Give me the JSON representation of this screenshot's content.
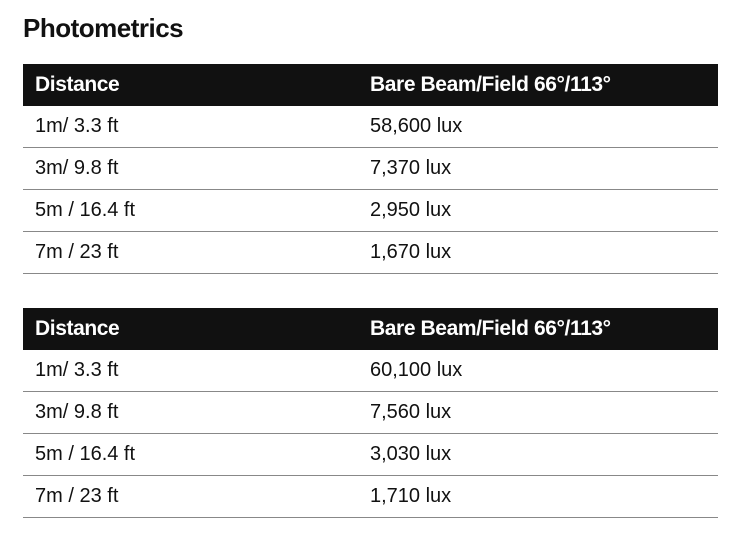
{
  "title": "Photometrics",
  "tables": [
    {
      "headers": [
        "Distance",
        "Bare Beam/Field 66°/113°"
      ],
      "rows": [
        [
          "1m/ 3.3 ft",
          "58,600 lux"
        ],
        [
          "3m/ 9.8 ft",
          "7,370 lux"
        ],
        [
          "5m / 16.4 ft",
          "2,950 lux"
        ],
        [
          "7m / 23 ft",
          "1,670 lux"
        ]
      ]
    },
    {
      "headers": [
        "Distance",
        "Bare Beam/Field 66°/113°"
      ],
      "rows": [
        [
          "1m/ 3.3 ft",
          "60,100 lux"
        ],
        [
          "3m/ 9.8 ft",
          "7,560 lux"
        ],
        [
          "5m / 16.4 ft",
          "3,030 lux"
        ],
        [
          "7m / 23 ft",
          "1,710 lux"
        ]
      ]
    }
  ]
}
